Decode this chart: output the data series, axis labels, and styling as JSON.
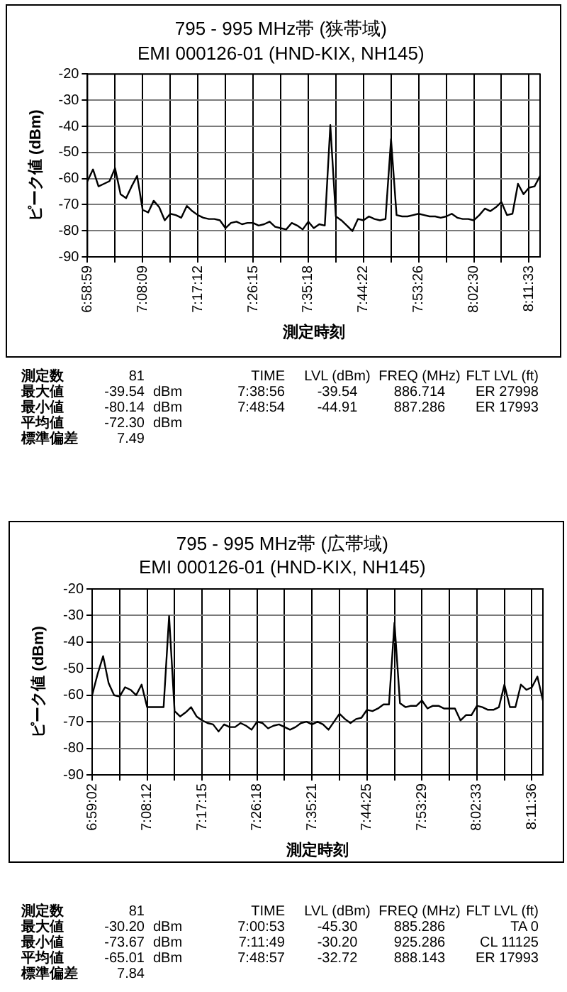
{
  "chart_data": [
    {
      "type": "line",
      "title": "795 - 995 MHz帯 (狭帯域)",
      "subtitle": "EMI 000126-01 (HND-KIX, NH145)",
      "xlabel": "測定時刻",
      "ylabel": "ピーク値 (dBm)",
      "categories": [
        "6:58:59",
        null,
        null,
        null,
        null,
        null,
        null,
        null,
        null,
        null,
        "7:08:09",
        null,
        null,
        null,
        null,
        null,
        null,
        null,
        null,
        null,
        "7:17:12",
        null,
        null,
        null,
        null,
        null,
        null,
        null,
        null,
        null,
        "7:26:15",
        null,
        null,
        null,
        null,
        null,
        null,
        null,
        null,
        null,
        "7:35:18",
        null,
        null,
        null,
        null,
        null,
        null,
        null,
        null,
        null,
        "7:44:22",
        null,
        null,
        null,
        null,
        null,
        null,
        null,
        null,
        null,
        "7:53:26",
        null,
        null,
        null,
        null,
        null,
        null,
        null,
        null,
        null,
        "8:02:30",
        null,
        null,
        null,
        null,
        null,
        null,
        null,
        null,
        null,
        "8:11:33",
        null,
        null
      ],
      "values": [
        -61,
        -56.5,
        -63,
        -62,
        -61,
        -56,
        -66,
        -67.5,
        -63,
        -59,
        -72,
        -73,
        -68.5,
        -71,
        -76,
        -73.5,
        -74,
        -75,
        -70.5,
        -72.5,
        -74,
        -75,
        -75.5,
        -75.5,
        -76,
        -79,
        -77,
        -76.5,
        -77.5,
        -77,
        -77,
        -78,
        -77.5,
        -76.5,
        -78.5,
        -79,
        -79.5,
        -77,
        -78,
        -79.5,
        -76.5,
        -79,
        -77.5,
        -78,
        -39.54,
        -74.5,
        -76,
        -78,
        -80.14,
        -75.5,
        -76,
        -74.5,
        -75.5,
        -76,
        -75.5,
        -44.91,
        -74,
        -74.5,
        -74.5,
        -74,
        -73.5,
        -74,
        -74.5,
        -74.5,
        -75,
        -74.5,
        -73.5,
        -75,
        -75.5,
        -75.5,
        -76,
        -74,
        -71.5,
        -72.5,
        -71,
        -69,
        -74,
        -73.5,
        -62,
        -66,
        -63.5,
        -63,
        -59
      ],
      "color": "#000000",
      "ylim": [
        -90,
        -20
      ],
      "yticks": [
        -90,
        -80,
        -70,
        -60,
        -50,
        -40,
        -30,
        -20
      ],
      "grid": true,
      "marker": "none"
    },
    {
      "type": "other",
      "y_categories": [
        "測定数",
        "最大値",
        "最小値",
        "平均値",
        "標準偏差"
      ],
      "cell_labels": [
        [
          "81",
          null
        ],
        [
          "-39.54",
          "dBm"
        ],
        [
          "-80.14",
          "dBm"
        ],
        [
          "-72.30",
          "dBm"
        ],
        [
          "7.49",
          null
        ]
      ]
    },
    {
      "type": "other",
      "categories": [
        "TIME",
        "LVL (dBm)",
        "FREQ (MHz)",
        "FLT LVL (ft)"
      ],
      "cell_labels": [
        [
          "7:38:56",
          "-39.54",
          "886.714",
          "ER 27998"
        ],
        [
          "7:48:54",
          "-44.91",
          "887.286",
          "ER 17993"
        ]
      ]
    },
    {
      "type": "line",
      "title": "795 - 995 MHz帯 (広帯域)",
      "subtitle": "EMI 000126-01 (HND-KIX, NH145)",
      "xlabel": "測定時刻",
      "ylabel": "ピーク値 (dBm)",
      "categories": [
        "6:59:02",
        null,
        null,
        null,
        null,
        null,
        null,
        null,
        null,
        null,
        "7:08:12",
        null,
        null,
        null,
        null,
        null,
        null,
        null,
        null,
        null,
        "7:17:15",
        null,
        null,
        null,
        null,
        null,
        null,
        null,
        null,
        null,
        "7:26:18",
        null,
        null,
        null,
        null,
        null,
        null,
        null,
        null,
        null,
        "7:35:21",
        null,
        null,
        null,
        null,
        null,
        null,
        null,
        null,
        null,
        "7:44:25",
        null,
        null,
        null,
        null,
        null,
        null,
        null,
        null,
        null,
        "7:53:29",
        null,
        null,
        null,
        null,
        null,
        null,
        null,
        null,
        null,
        "8:02:33",
        null,
        null,
        null,
        null,
        null,
        null,
        null,
        null,
        null,
        "8:11:36",
        null,
        null
      ],
      "values": [
        -60,
        -52,
        -45.3,
        -55.5,
        -60,
        -60.5,
        -57,
        -58,
        -60,
        -56,
        -64.5,
        -64.5,
        -64.5,
        -64.5,
        -30.2,
        -66,
        -68,
        -66.5,
        -64.5,
        -68,
        -69.5,
        -70.5,
        -71,
        -73.67,
        -71,
        -72,
        -72,
        -70.5,
        -71.5,
        -73,
        -70,
        -70.5,
        -72.5,
        -71.5,
        -71,
        -72,
        -73,
        -72,
        -70.5,
        -70,
        -71,
        -70,
        -71,
        -73,
        -70,
        -67,
        -69,
        -70.5,
        -69,
        -68.5,
        -65.5,
        -66,
        -65,
        -63.5,
        -63.5,
        -32.72,
        -63,
        -64.5,
        -64,
        -64,
        -62,
        -65,
        -64,
        -64,
        -65,
        -65,
        -65,
        -69.5,
        -67.5,
        -67.5,
        -64,
        -64.5,
        -65.5,
        -65.5,
        -64.5,
        -56,
        -64.5,
        -64.5,
        -56,
        -58,
        -57,
        -53,
        -62
      ],
      "color": "#000000",
      "ylim": [
        -90,
        -20
      ],
      "yticks": [
        -90,
        -80,
        -70,
        -60,
        -50,
        -40,
        -30,
        -20
      ],
      "grid": true,
      "marker": "none"
    },
    {
      "type": "other",
      "y_categories": [
        "測定数",
        "最大値",
        "最小値",
        "平均値",
        "標準偏差"
      ],
      "cell_labels": [
        [
          "81",
          null
        ],
        [
          "-30.20",
          "dBm"
        ],
        [
          "-73.67",
          "dBm"
        ],
        [
          "-65.01",
          "dBm"
        ],
        [
          "7.84",
          null
        ]
      ]
    },
    {
      "type": "other",
      "categories": [
        "TIME",
        "LVL (dBm)",
        "FREQ (MHz)",
        "FLT LVL (ft)"
      ],
      "cell_labels": [
        [
          "7:00:53",
          "-45.30",
          "885.286",
          "TA 0"
        ],
        [
          "7:11:49",
          "-30.20",
          "925.286",
          "CL 11125"
        ],
        [
          "7:48:57",
          "-32.72",
          "888.143",
          "ER 17993"
        ]
      ]
    }
  ]
}
